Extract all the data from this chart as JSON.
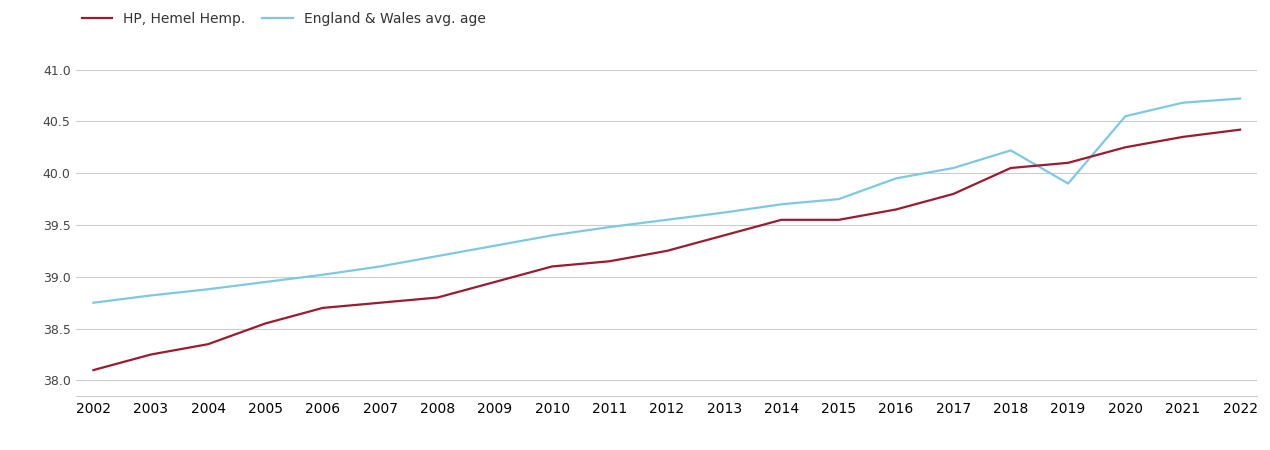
{
  "years": [
    2002,
    2003,
    2004,
    2005,
    2006,
    2007,
    2008,
    2009,
    2010,
    2011,
    2012,
    2013,
    2014,
    2015,
    2016,
    2017,
    2018,
    2019,
    2020,
    2021,
    2022
  ],
  "hp_hemel": [
    38.1,
    38.25,
    38.35,
    38.55,
    38.7,
    38.75,
    38.8,
    38.95,
    39.1,
    39.15,
    39.25,
    39.4,
    39.55,
    39.55,
    39.65,
    39.8,
    40.05,
    40.1,
    40.25,
    40.35,
    40.42
  ],
  "eng_wales": [
    38.75,
    38.82,
    38.88,
    38.95,
    39.02,
    39.1,
    39.2,
    39.3,
    39.4,
    39.48,
    39.55,
    39.62,
    39.7,
    39.75,
    39.95,
    40.05,
    40.22,
    39.9,
    40.55,
    40.68,
    40.72
  ],
  "hp_color": "#9b1b30",
  "ew_color": "#7ec8e3",
  "hp_label": "HP, Hemel Hemp.",
  "ew_label": "England & Wales avg. age",
  "ylim_min": 37.85,
  "ylim_max": 41.15,
  "yticks": [
    38.0,
    38.5,
    39.0,
    39.5,
    40.0,
    40.5,
    41.0
  ],
  "grid_color": "#cccccc",
  "background_color": "#ffffff",
  "line_width": 1.6
}
